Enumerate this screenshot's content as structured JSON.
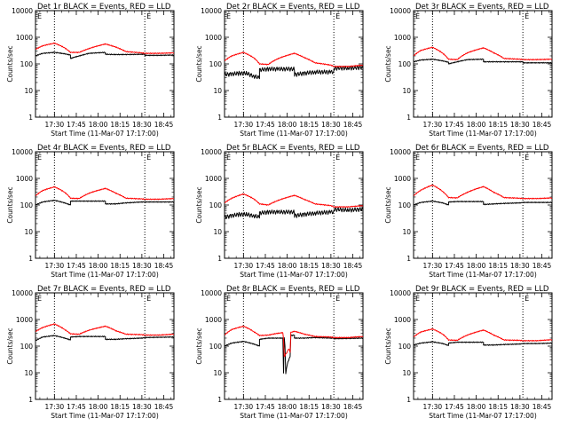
{
  "page": {
    "x_tick_labels": [
      "17:30",
      "17:45",
      "18:00",
      "18:15",
      "18:30",
      "18:45"
    ],
    "y_tick_labels": [
      "1",
      "10",
      "100",
      "1000",
      "10000"
    ],
    "colors": {
      "events": "#000000",
      "lld": "#ff0000",
      "axes": "#000000"
    }
  },
  "chart_data": [
    {
      "type": "line",
      "title": "Det 1r BLACK = Events, RED = LLD",
      "xlabel": "Start Time (11-Mar-07 17:17:00)",
      "ylabel": "Counts/sec",
      "ylim": [
        1,
        10000
      ],
      "y_scale": "log",
      "x_unit": "minutes after 17:17:00",
      "xlim": [
        0,
        95
      ],
      "events_style": "black",
      "marker_E": "E",
      "dotted_vlines": [
        13,
        75
      ],
      "series": [
        {
          "name": "Events",
          "x": [
            0,
            5,
            13,
            20,
            24,
            24,
            30,
            37,
            48,
            48,
            55,
            62,
            73,
            75,
            75,
            85,
            95
          ],
          "values": [
            200,
            250,
            270,
            240,
            215,
            160,
            200,
            250,
            270,
            230,
            225,
            225,
            230,
            230,
            210,
            210,
            215
          ]
        },
        {
          "name": "LLD",
          "x": [
            0,
            5,
            13,
            20,
            24,
            30,
            37,
            48,
            55,
            62,
            73,
            75,
            85,
            95
          ],
          "values": [
            350,
            480,
            600,
            400,
            270,
            270,
            380,
            560,
            430,
            290,
            260,
            250,
            250,
            260
          ]
        }
      ]
    },
    {
      "type": "line",
      "title": "Det 2r BLACK = Events, RED = LLD",
      "xlabel": "Start Time (11-Mar-07 17:17:00)",
      "ylabel": "Counts/sec",
      "ylim": [
        1,
        10000
      ],
      "y_scale": "log",
      "x_unit": "minutes after 17:17:00",
      "xlim": [
        0,
        95
      ],
      "events_style": "noisy",
      "marker_E": "E",
      "dotted_vlines": [
        13,
        75
      ],
      "series": [
        {
          "name": "Events",
          "x": [
            0,
            5,
            10,
            15,
            20,
            24,
            24,
            30,
            37,
            48,
            48,
            55,
            62,
            73,
            75,
            75,
            85,
            95
          ],
          "values": [
            40,
            42,
            45,
            45,
            35,
            30,
            60,
            65,
            65,
            65,
            40,
            45,
            50,
            50,
            50,
            70,
            70,
            75
          ]
        },
        {
          "name": "LLD",
          "x": [
            0,
            5,
            13,
            20,
            24,
            30,
            37,
            48,
            55,
            62,
            73,
            75,
            85,
            95
          ],
          "values": [
            130,
            200,
            270,
            170,
            100,
            95,
            160,
            250,
            170,
            110,
            90,
            80,
            80,
            90
          ]
        }
      ]
    },
    {
      "type": "line",
      "title": "Det 3r BLACK = Events, RED = LLD",
      "xlabel": "Start Time (11-Mar-07 17:17:00)",
      "ylabel": "Counts/sec",
      "ylim": [
        1,
        10000
      ],
      "y_scale": "log",
      "x_unit": "minutes after 17:17:00",
      "xlim": [
        0,
        95
      ],
      "events_style": "black",
      "marker_E": "E",
      "dotted_vlines": [
        13,
        75
      ],
      "series": [
        {
          "name": "Events",
          "x": [
            0,
            5,
            13,
            20,
            24,
            24,
            30,
            37,
            48,
            48,
            55,
            62,
            73,
            75,
            75,
            85,
            95
          ],
          "values": [
            120,
            140,
            150,
            130,
            115,
            100,
            120,
            145,
            150,
            120,
            120,
            120,
            120,
            120,
            110,
            110,
            110
          ]
        },
        {
          "name": "LLD",
          "x": [
            0,
            5,
            13,
            20,
            24,
            30,
            37,
            48,
            55,
            62,
            73,
            75,
            85,
            95
          ],
          "values": [
            200,
            320,
            420,
            250,
            150,
            145,
            260,
            400,
            260,
            160,
            150,
            145,
            145,
            150
          ]
        }
      ]
    },
    {
      "type": "line",
      "title": "Det 4r BLACK = Events, RED = LLD",
      "xlabel": "Start Time (11-Mar-07 17:17:00)",
      "ylabel": "Counts/sec",
      "ylim": [
        1,
        10000
      ],
      "y_scale": "log",
      "x_unit": "minutes after 17:17:00",
      "xlim": [
        0,
        95
      ],
      "events_style": "black",
      "marker_E": "E",
      "dotted_vlines": [
        13,
        75
      ],
      "series": [
        {
          "name": "Events",
          "x": [
            0,
            5,
            13,
            20,
            24,
            24,
            30,
            37,
            48,
            48,
            55,
            62,
            73,
            75,
            75,
            85,
            95
          ],
          "values": [
            100,
            130,
            150,
            120,
            100,
            140,
            140,
            140,
            140,
            110,
            110,
            120,
            130,
            130,
            130,
            130,
            130
          ]
        },
        {
          "name": "LLD",
          "x": [
            0,
            5,
            13,
            20,
            24,
            30,
            37,
            48,
            55,
            62,
            73,
            75,
            85,
            95
          ],
          "values": [
            220,
            350,
            480,
            300,
            180,
            175,
            280,
            420,
            280,
            180,
            170,
            165,
            165,
            175
          ]
        }
      ]
    },
    {
      "type": "line",
      "title": "Det 5r BLACK = Events, RED = LLD",
      "xlabel": "Start Time (11-Mar-07 17:17:00)",
      "ylabel": "Counts/sec",
      "ylim": [
        1,
        10000
      ],
      "y_scale": "log",
      "x_unit": "minutes after 17:17:00",
      "xlim": [
        0,
        95
      ],
      "events_style": "noisy",
      "marker_E": "E",
      "dotted_vlines": [
        13,
        75
      ],
      "series": [
        {
          "name": "Events",
          "x": [
            0,
            5,
            10,
            15,
            20,
            24,
            24,
            30,
            37,
            48,
            48,
            55,
            62,
            73,
            75,
            75,
            85,
            95
          ],
          "values": [
            35,
            40,
            45,
            45,
            40,
            35,
            50,
            55,
            55,
            55,
            40,
            45,
            50,
            55,
            55,
            70,
            65,
            70
          ]
        },
        {
          "name": "LLD",
          "x": [
            0,
            5,
            13,
            20,
            24,
            30,
            37,
            48,
            55,
            62,
            73,
            75,
            85,
            95
          ],
          "values": [
            120,
            180,
            260,
            170,
            110,
            100,
            150,
            230,
            160,
            110,
            95,
            85,
            85,
            95
          ]
        }
      ]
    },
    {
      "type": "line",
      "title": "Det 6r BLACK = Events, RED = LLD",
      "xlabel": "Start Time (11-Mar-07 17:17:00)",
      "ylabel": "Counts/sec",
      "ylim": [
        1,
        10000
      ],
      "y_scale": "log",
      "x_unit": "minutes after 17:17:00",
      "xlim": [
        0,
        95
      ],
      "events_style": "black",
      "marker_E": "E",
      "dotted_vlines": [
        13,
        75
      ],
      "series": [
        {
          "name": "Events",
          "x": [
            0,
            5,
            13,
            20,
            24,
            24,
            30,
            37,
            48,
            48,
            55,
            62,
            73,
            75,
            75,
            85,
            95
          ],
          "values": [
            100,
            125,
            140,
            120,
            100,
            130,
            135,
            135,
            135,
            105,
            110,
            115,
            120,
            125,
            125,
            125,
            125
          ]
        },
        {
          "name": "LLD",
          "x": [
            0,
            5,
            13,
            20,
            24,
            30,
            37,
            48,
            55,
            62,
            73,
            75,
            85,
            95
          ],
          "values": [
            220,
            360,
            560,
            320,
            190,
            185,
            300,
            490,
            300,
            190,
            180,
            175,
            175,
            185
          ]
        }
      ]
    },
    {
      "type": "line",
      "title": "Det 7r BLACK = Events, RED = LLD",
      "xlabel": "Start Time (11-Mar-07 17:17:00)",
      "ylabel": "Counts/sec",
      "ylim": [
        1,
        10000
      ],
      "y_scale": "log",
      "x_unit": "minutes after 17:17:00",
      "xlim": [
        0,
        95
      ],
      "events_style": "black",
      "marker_E": "E",
      "dotted_vlines": [
        13,
        75
      ],
      "series": [
        {
          "name": "Events",
          "x": [
            0,
            5,
            13,
            20,
            24,
            24,
            30,
            37,
            48,
            48,
            55,
            62,
            73,
            75,
            75,
            85,
            95
          ],
          "values": [
            160,
            220,
            250,
            200,
            170,
            220,
            230,
            230,
            230,
            180,
            180,
            190,
            200,
            210,
            210,
            215,
            220
          ]
        },
        {
          "name": "LLD",
          "x": [
            0,
            5,
            13,
            20,
            24,
            30,
            37,
            48,
            55,
            62,
            73,
            75,
            85,
            95
          ],
          "values": [
            350,
            500,
            680,
            420,
            290,
            280,
            400,
            560,
            380,
            280,
            270,
            260,
            260,
            280
          ]
        }
      ]
    },
    {
      "type": "line",
      "title": "Det 8r BLACK = Events, RED = LLD",
      "xlabel": "Start Time (11-Mar-07 17:17:00)",
      "ylabel": "Counts/sec",
      "ylim": [
        1,
        10000
      ],
      "y_scale": "log",
      "x_unit": "minutes after 17:17:00",
      "xlim": [
        0,
        95
      ],
      "events_style": "black",
      "marker_E": "E",
      "dotted_vlines": [
        13,
        75
      ],
      "series": [
        {
          "name": "Events",
          "x": [
            0,
            5,
            13,
            20,
            24,
            24,
            30,
            36,
            40,
            40.5,
            41,
            42,
            43,
            44,
            45,
            45.5,
            48,
            48,
            55,
            62,
            73,
            75,
            75,
            85,
            95
          ],
          "values": [
            100,
            130,
            150,
            120,
            100,
            180,
            200,
            200,
            200,
            10,
            200,
            9,
            20,
            30,
            40,
            250,
            260,
            200,
            200,
            210,
            200,
            200,
            190,
            195,
            200
          ]
        },
        {
          "name": "LLD",
          "x": [
            0,
            5,
            13,
            20,
            24,
            30,
            36,
            40,
            41,
            42,
            43,
            44,
            45,
            45.5,
            48,
            55,
            62,
            73,
            75,
            85,
            95
          ],
          "values": [
            260,
            420,
            560,
            350,
            250,
            260,
            300,
            320,
            40,
            50,
            60,
            80,
            60,
            330,
            360,
            280,
            230,
            220,
            210,
            210,
            230
          ]
        }
      ]
    },
    {
      "type": "line",
      "title": "Det 9r BLACK = Events, RED = LLD",
      "xlabel": "Start Time (11-Mar-07 17:17:00)",
      "ylabel": "Counts/sec",
      "ylim": [
        1,
        10000
      ],
      "y_scale": "log",
      "x_unit": "minutes after 17:17:00",
      "xlim": [
        0,
        95
      ],
      "events_style": "black",
      "marker_E": "E",
      "dotted_vlines": [
        13,
        75
      ],
      "series": [
        {
          "name": "Events",
          "x": [
            0,
            5,
            13,
            20,
            24,
            24,
            30,
            37,
            48,
            48,
            55,
            62,
            73,
            75,
            75,
            85,
            95
          ],
          "values": [
            110,
            130,
            145,
            125,
            105,
            130,
            140,
            140,
            140,
            110,
            110,
            115,
            120,
            125,
            125,
            125,
            130
          ]
        },
        {
          "name": "LLD",
          "x": [
            0,
            5,
            13,
            20,
            24,
            30,
            37,
            48,
            55,
            62,
            73,
            75,
            85,
            95
          ],
          "values": [
            220,
            340,
            440,
            280,
            170,
            165,
            260,
            400,
            260,
            170,
            165,
            160,
            160,
            175
          ]
        }
      ]
    }
  ]
}
